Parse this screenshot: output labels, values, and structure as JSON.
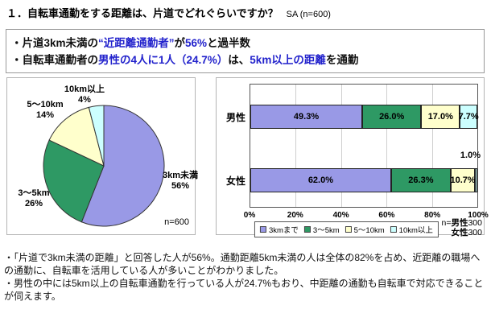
{
  "title": {
    "main": "１．自転車通勤をする距離は、片道でどれぐらいですか？",
    "suffix": "SA (n=600)"
  },
  "accent_color": "#2222CC",
  "summary": {
    "line1": {
      "p0": "・片道3km未満の",
      "p1": "“近距離通勤者”",
      "p2": "が",
      "p3": "56%",
      "p4": "と過半数"
    },
    "line2": {
      "p0": "・自転車通勤者の",
      "p1": "男性の4人に1人（24.7%）",
      "p2": "は、",
      "p3": "5km以上の距離",
      "p4": "を通勤"
    }
  },
  "chart_data": [
    {
      "type": "pie",
      "title": "",
      "labels": [
        "3km未満",
        "3～5km",
        "5～10km",
        "10km以上"
      ],
      "values": [
        56,
        26,
        14,
        4
      ],
      "value_labels": [
        "56%",
        "26%",
        "14%",
        "4%"
      ],
      "colors": [
        "#9999E6",
        "#2E9964",
        "#FFFFCC",
        "#CCFFFF"
      ],
      "start_angle": "top",
      "direction": "clockwise",
      "note": "n=600"
    },
    {
      "type": "bar",
      "orientation": "horizontal-stacked",
      "categories": [
        "男性",
        "女性"
      ],
      "series": [
        {
          "name": "3kmまで",
          "color": "#9999E6",
          "values": [
            49.3,
            62.0
          ]
        },
        {
          "name": "3～5km",
          "color": "#2E9964",
          "values": [
            26.0,
            26.3
          ]
        },
        {
          "name": "5～10km",
          "color": "#FFFFCC",
          "values": [
            17.0,
            10.7
          ]
        },
        {
          "name": "10km以上",
          "color": "#CCFFFF",
          "values": [
            7.7,
            1.0
          ]
        }
      ],
      "value_labels": [
        [
          "49.3%",
          "26.0%",
          "17.0%",
          "7.7%"
        ],
        [
          "62.0%",
          "26.3%",
          "10.7%",
          "1.0%"
        ]
      ],
      "x_ticks": [
        "0%",
        "20%",
        "40%",
        "60%",
        "80%",
        "100%"
      ],
      "xlim": [
        0,
        100
      ],
      "grid": true,
      "legend_position": "bottom",
      "notes": {
        "n1_prefix": "n=",
        "n1_bold": "男性",
        "n1_value": "300",
        "n2_bold": "女性",
        "n2_value": "300"
      }
    }
  ],
  "notes": {
    "para1": "・「片道で3km未満の距離」と回答した人が56%。通勤距離5km未満の人は全体の82%を占め、近距離の職場への通勤に、自転車を活用している人が多いことがわかりました。",
    "para2": "・男性の中には5km以上の自転車通勤を行っている人が24.7%もおり、中距離の通勤も自転車で対応できることが伺えます。"
  }
}
